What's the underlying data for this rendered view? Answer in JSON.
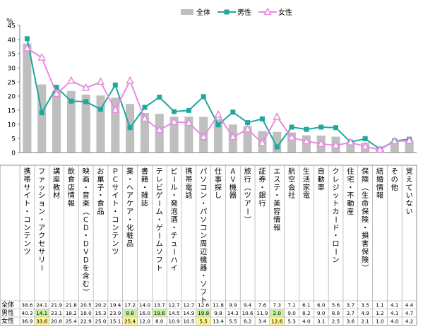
{
  "chart_data": {
    "type": "bar",
    "y_unit": "%",
    "ylim": [
      0,
      45
    ],
    "yticks": [
      0,
      5,
      10,
      15,
      20,
      25,
      30,
      35,
      40,
      45
    ],
    "grid": false,
    "legend_position": "top",
    "categories": [
      "携帯サイト・コンテンツ",
      "ファッション・アクセサリー",
      "講座教材",
      "飲食店情報",
      "映画・音楽（ＣＤ・ＤＶＤを含む）",
      "お菓子・食品",
      "ＰＣサイト・コンテンツ",
      "薬・ヘアケア・化粧品",
      "書籍・雑誌",
      "テレビゲーム・ゲームソフト",
      "ビール・発泡酒・チューハイ",
      "携帯電話",
      "パソコン・パソコン周辺機器・ソフト",
      "仕事探し",
      "ＡＶ機器",
      "旅行（ツアー）",
      "証券・銀行",
      "エステ・美容情報",
      "航空会社",
      "生活家電",
      "自動車",
      "クレジットカード・ローン",
      "住宅・不動産",
      "保険（生命保険・損害保険）",
      "結婚情報",
      "その他",
      "覚えていない"
    ],
    "series": [
      {
        "name": "全体",
        "color": "#bfbfbf",
        "kind": "bar",
        "values": [
          38.6,
          24.1,
          21.9,
          21.8,
          20.5,
          20.2,
          19.4,
          17.2,
          14.0,
          13.7,
          12.7,
          12.7,
          12.6,
          11.8,
          9.9,
          9.4,
          7.6,
          7.3,
          7.1,
          6.1,
          6.0,
          5.6,
          3.7,
          3.5,
          1.1,
          4.1,
          4.4
        ],
        "labels": [
          "38.6",
          "24.1",
          "21.9",
          "21.8",
          "20.5",
          "20.2",
          "19.4",
          "17.2",
          "14.0",
          "13.7",
          "12.7",
          "12.7",
          "12.6",
          "11.8",
          "9.9",
          "9.4",
          "7.6",
          "7.3",
          "7.1",
          "6.1",
          "6.0",
          "5.6",
          "3.7",
          "3.5",
          "1.1",
          "4.1",
          "4.4"
        ]
      },
      {
        "name": "男性",
        "color": "#1ea89e",
        "kind": "line",
        "marker": "square",
        "values": [
          40.3,
          14.1,
          23.1,
          18.2,
          18.0,
          15.3,
          23.9,
          8.8,
          16.0,
          19.6,
          14.5,
          14.9,
          19.8,
          9.8,
          14.3,
          10.6,
          11.9,
          2.0,
          9.0,
          8.2,
          9.0,
          8.8,
          3.7,
          4.9,
          1.2,
          4.1,
          4.7
        ],
        "labels": [
          "40.3",
          "14.1",
          "23.1",
          "18.2",
          "18.0",
          "15.3",
          "23.9",
          "8.8",
          "16.0",
          "19.6",
          "14.5",
          "14.9",
          "19.8",
          "9.8",
          "14.3",
          "10.6",
          "11.9",
          "2.0",
          "9.0",
          "8.2",
          "9.0",
          "8.8",
          "3.7",
          "4.9",
          "1.2",
          "4.1",
          "4.7"
        ],
        "highlight": [
          false,
          true,
          false,
          false,
          false,
          false,
          false,
          true,
          false,
          true,
          false,
          false,
          true,
          false,
          false,
          false,
          false,
          true,
          false,
          false,
          false,
          false,
          false,
          false,
          false,
          false,
          false
        ]
      },
      {
        "name": "女性",
        "color": "#e88be0",
        "kind": "line",
        "marker": "triangle",
        "values": [
          36.9,
          33.6,
          20.8,
          25.4,
          22.9,
          25.0,
          15.1,
          25.4,
          12.0,
          8.0,
          10.9,
          10.5,
          5.5,
          13.4,
          5.5,
          8.2,
          3.4,
          12.6,
          5.3,
          4.0,
          3.1,
          2.5,
          3.6,
          2.1,
          1.0,
          4.0,
          4.2
        ],
        "labels": [
          "36.9",
          "33.6",
          "20.8",
          "25.4",
          "22.9",
          "25.0",
          "15.1",
          "25.4",
          "12.0",
          "8.0",
          "10.9",
          "10.5",
          "5.5",
          "13.4",
          "5.5",
          "8.2",
          "3.4",
          "12.6",
          "5.3",
          "4.0",
          "3.1",
          "2.5",
          "3.6",
          "2.1",
          "1.0",
          "4.0",
          "4.2"
        ],
        "highlight": [
          false,
          true,
          false,
          false,
          false,
          false,
          false,
          true,
          false,
          false,
          false,
          false,
          true,
          false,
          false,
          false,
          false,
          true,
          false,
          false,
          false,
          false,
          false,
          false,
          false,
          false,
          false
        ]
      }
    ]
  }
}
